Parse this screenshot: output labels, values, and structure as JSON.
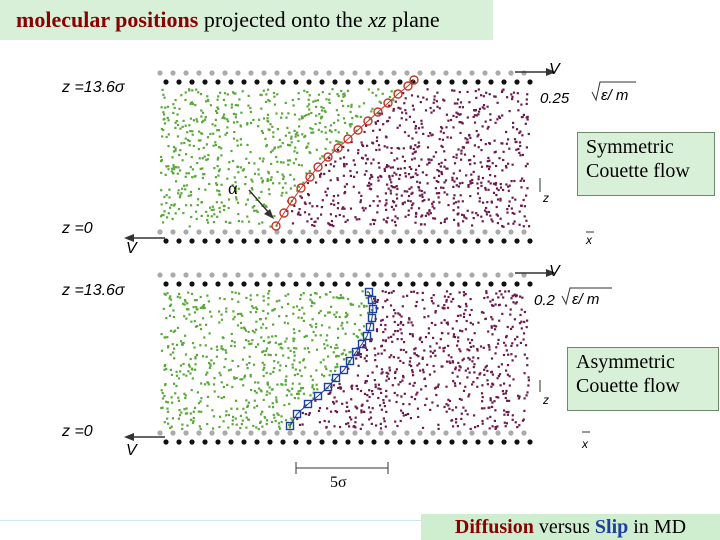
{
  "header": {
    "title_bold": "molecular positions",
    "title_mid": " projected onto the ",
    "title_italic": "xz",
    "title_end": " plane"
  },
  "panel_top": {
    "z_top_label": "z =13.6σ",
    "z_bottom_label": "z =0",
    "velocity_top_label": "V",
    "velocity_bottom_label": "V",
    "shear_rate_value": "0.25",
    "shear_rate_units": "ε/ m",
    "angle_label": "α",
    "axis_z": "z",
    "axis_x": "x",
    "caption_line1": "Symmetric",
    "caption_line2": "Couette flow"
  },
  "panel_bottom": {
    "z_top_label": "z =13.6σ",
    "z_bottom_label": "z =0",
    "velocity_top_label": "V",
    "velocity_bottom_label": "V",
    "shear_rate_value": "0.2",
    "shear_rate_units": "ε/ m",
    "axis_z": "z",
    "axis_x": "x",
    "scale_label": "5σ",
    "caption_line1": "Asymmetric",
    "caption_line2": "Couette flow"
  },
  "footer": {
    "word1": "Diffusion",
    "word2": " versus ",
    "word3": "Slip",
    "word4": " in MD"
  },
  "colors": {
    "left_fluid": "#5aa83a",
    "right_fluid": "#6b1a4a",
    "wall_atoms": "#111111",
    "interface_top": "#c0392b",
    "interface_bottom": "#1f3fa0"
  }
}
